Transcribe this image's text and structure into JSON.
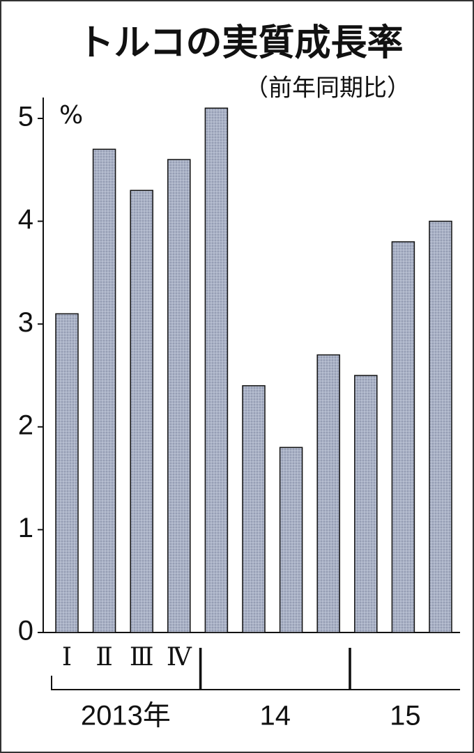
{
  "chart_data": {
    "type": "bar",
    "title": "トルコの実質成長率",
    "subtitle": "（前年同期比）",
    "unit": "%",
    "categories": [
      "Ⅰ",
      "Ⅱ",
      "Ⅲ",
      "Ⅳ",
      null,
      null,
      null,
      null,
      null,
      null,
      null
    ],
    "values": [
      3.1,
      4.7,
      4.3,
      4.6,
      5.1,
      2.4,
      1.8,
      2.7,
      2.5,
      3.8,
      4.0
    ],
    "groups": [
      {
        "label": "2013年",
        "count": 4
      },
      {
        "label": "14",
        "count": 4
      },
      {
        "label": "15",
        "count": 3
      }
    ],
    "color": "#a9b1c6",
    "ylim": [
      0,
      5
    ],
    "yticks": [
      0,
      1,
      2,
      3,
      4,
      5
    ]
  }
}
